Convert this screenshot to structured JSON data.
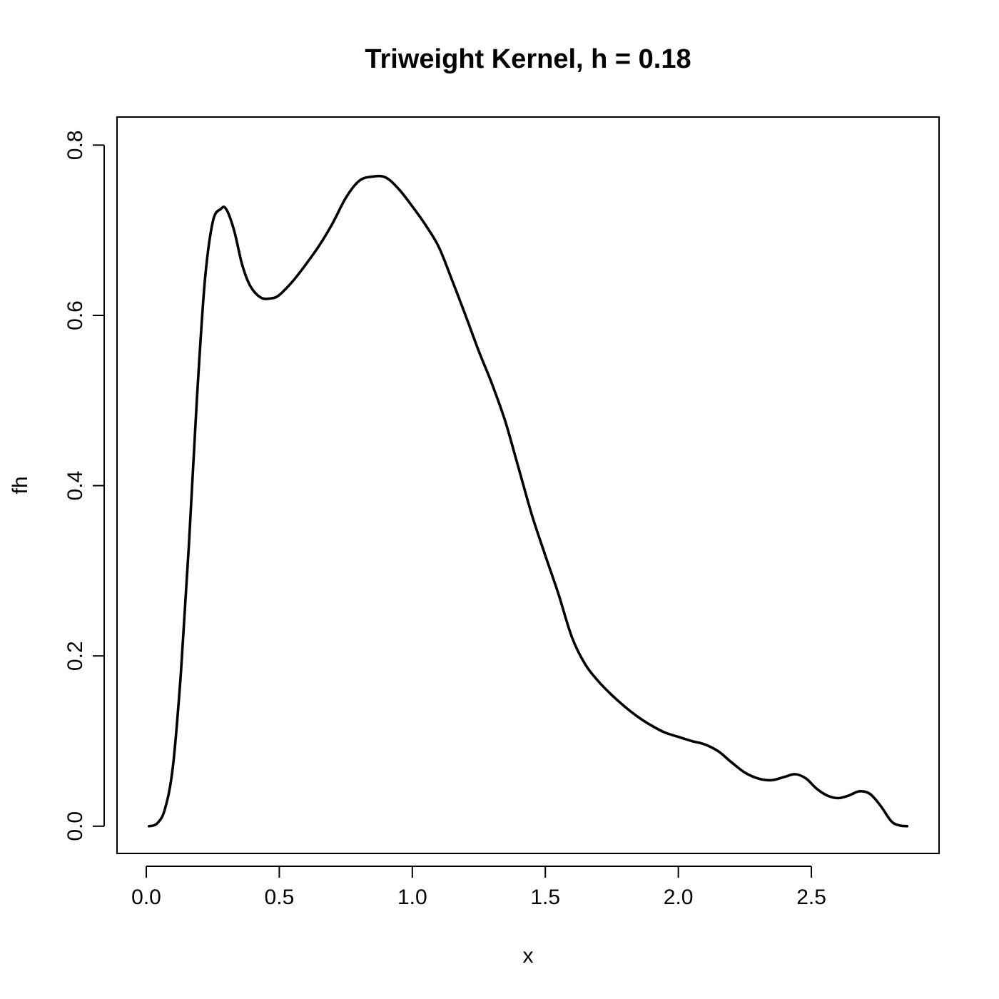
{
  "chart_data": {
    "type": "line",
    "title": "Triweight Kernel, h =  0.18",
    "xlabel": "x",
    "ylabel": "fh",
    "xlim": [
      -0.11,
      2.98
    ],
    "ylim": [
      -0.032,
      0.833
    ],
    "xticks": [
      0,
      0.5,
      1,
      1.5,
      2,
      2.5
    ],
    "xtick_labels": [
      "0.0",
      "0.5",
      "1.0",
      "1.5",
      "2.0",
      "2.5"
    ],
    "yticks": [
      0,
      0.2,
      0.4,
      0.6,
      0.8
    ],
    "ytick_labels": [
      "0.0",
      "0.2",
      "0.4",
      "0.6",
      "0.8"
    ],
    "grid": false,
    "line_color": "#000000",
    "series": [
      {
        "x": [
          0.01,
          0.04,
          0.07,
          0.1,
          0.13,
          0.16,
          0.19,
          0.22,
          0.25,
          0.28,
          0.3,
          0.33,
          0.36,
          0.39,
          0.43,
          0.47,
          0.5,
          0.55,
          0.6,
          0.65,
          0.7,
          0.75,
          0.8,
          0.85,
          0.9,
          0.95,
          1.0,
          1.05,
          1.1,
          1.15,
          1.2,
          1.25,
          1.3,
          1.35,
          1.4,
          1.45,
          1.5,
          1.55,
          1.6,
          1.65,
          1.7,
          1.75,
          1.8,
          1.85,
          1.9,
          1.95,
          2.0,
          2.05,
          2.1,
          2.15,
          2.2,
          2.25,
          2.3,
          2.35,
          2.4,
          2.44,
          2.48,
          2.52,
          2.56,
          2.6,
          2.64,
          2.68,
          2.72,
          2.76,
          2.8,
          2.83,
          2.86
        ],
        "y": [
          0.0,
          0.003,
          0.02,
          0.07,
          0.18,
          0.33,
          0.5,
          0.64,
          0.71,
          0.725,
          0.725,
          0.7,
          0.66,
          0.635,
          0.621,
          0.62,
          0.624,
          0.64,
          0.66,
          0.682,
          0.708,
          0.738,
          0.758,
          0.763,
          0.762,
          0.748,
          0.728,
          0.706,
          0.68,
          0.641,
          0.6,
          0.558,
          0.519,
          0.475,
          0.42,
          0.365,
          0.318,
          0.272,
          0.222,
          0.19,
          0.17,
          0.154,
          0.14,
          0.128,
          0.118,
          0.11,
          0.105,
          0.1,
          0.096,
          0.088,
          0.075,
          0.063,
          0.056,
          0.054,
          0.058,
          0.061,
          0.056,
          0.044,
          0.036,
          0.033,
          0.036,
          0.041,
          0.038,
          0.024,
          0.006,
          0.001,
          0.0
        ]
      }
    ]
  }
}
